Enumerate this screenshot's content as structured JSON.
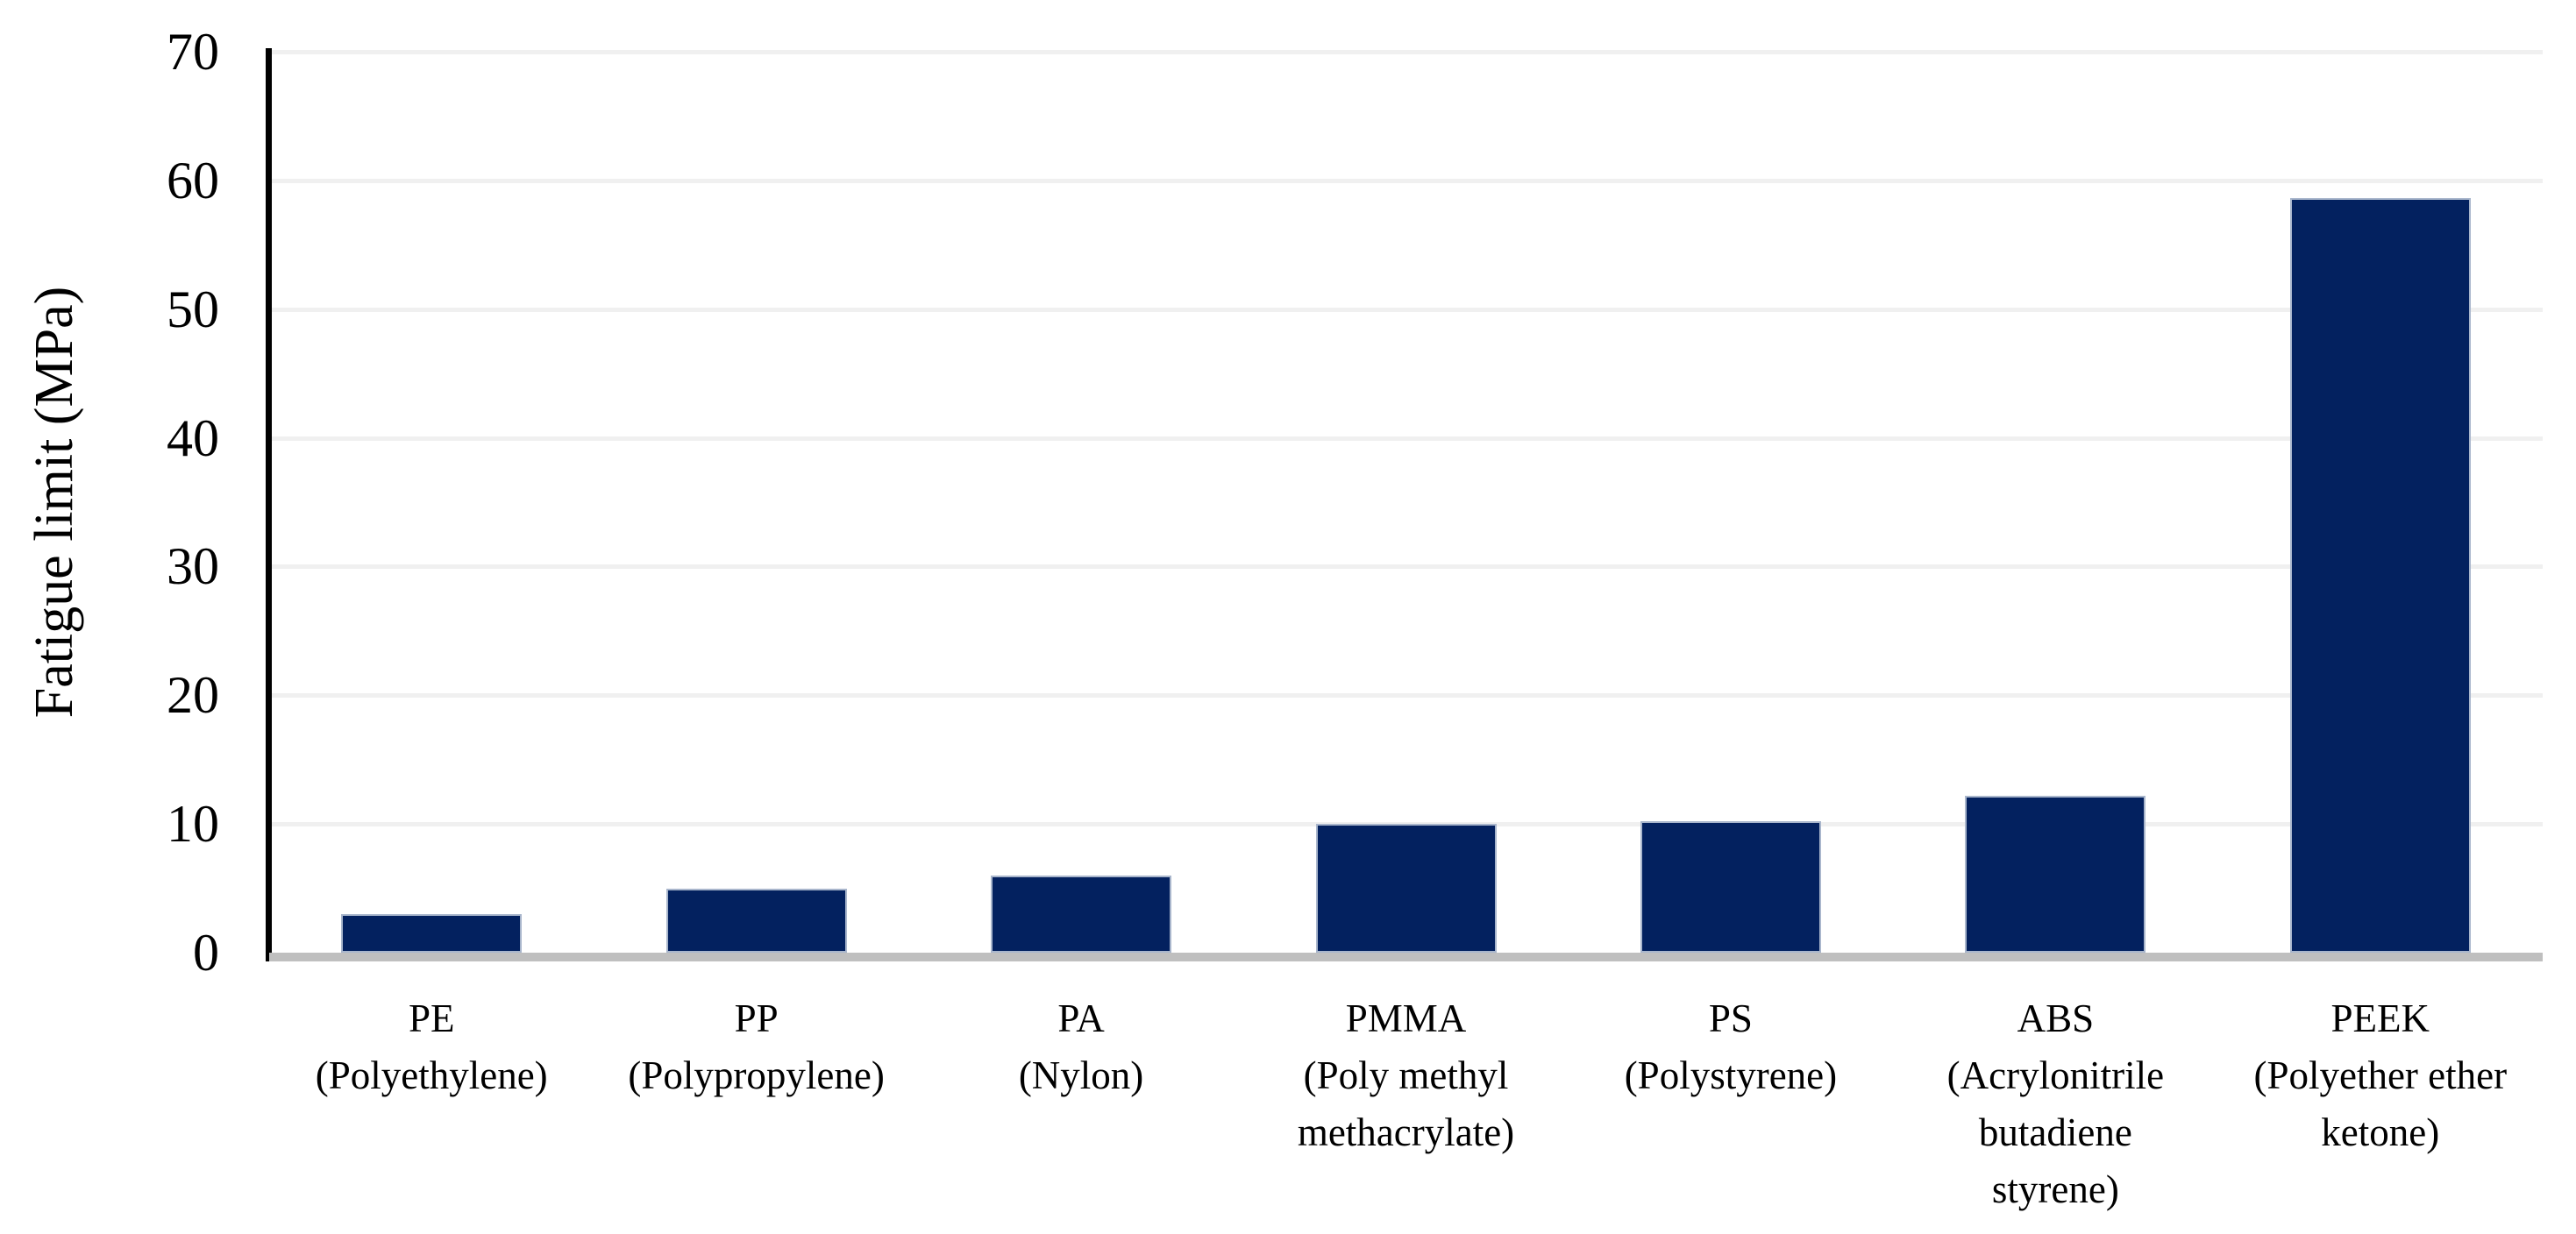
{
  "figure": {
    "background_color": "#ffffff",
    "text_color": "#000000"
  },
  "chart_data": {
    "type": "bar",
    "title": "",
    "xlabel": "",
    "ylabel": "Fatigue limit (MPa)",
    "ylim": [
      0,
      70
    ],
    "yticks": [
      0,
      10,
      20,
      30,
      40,
      50,
      60,
      70
    ],
    "grid": "horizontal",
    "legend_position": "none",
    "categories": [
      "PE (Polyethylene)",
      "PP (Polypropylene)",
      "PA (Nylon)",
      "PMMA (Poly methyl methacrylate)",
      "PS (Polystyrene)",
      "ABS (Acrylonitrile butadiene styrene)",
      "PEEK (Polyether ether ketone)"
    ],
    "category_labels": [
      [
        "PE",
        "(Polyethylene)"
      ],
      [
        "PP",
        "(Polypropylene)"
      ],
      [
        "PA",
        "(Nylon)"
      ],
      [
        "PMMA",
        "(Poly methyl",
        "methacrylate)"
      ],
      [
        "PS",
        "(Polystyrene)"
      ],
      [
        "ABS",
        "(Acrylonitrile",
        "butadiene",
        "styrene)"
      ],
      [
        "PEEK",
        "(Polyether ether",
        "ketone)"
      ]
    ],
    "values": [
      3,
      5,
      6,
      10,
      10.2,
      12.2,
      58.6
    ],
    "bar_color": "#03215f",
    "bar_border_color": "#a9b6cc",
    "gridline_color": "#f0f0f0",
    "axis_line_color": "#000000",
    "baseline_color": "#bfbfbf"
  }
}
